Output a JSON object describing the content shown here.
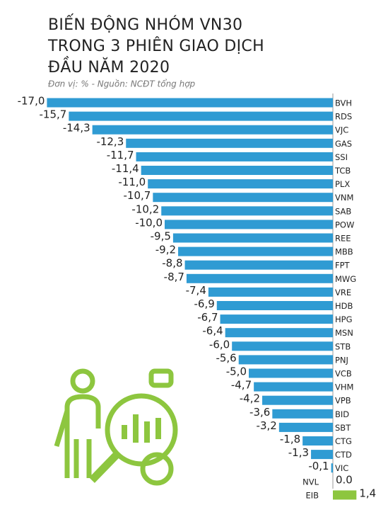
{
  "chart_data": {
    "type": "bar",
    "orientation": "horizontal",
    "title_lines": [
      "BIẾN ĐỘNG NHÓM VN30",
      "TRONG 3 PHIÊN GIAO DỊCH",
      "ĐẦU NĂM 2020"
    ],
    "subtitle": "Đơn vị: %    -   Nguồn: NCĐT tổng hợp",
    "categories": [
      "BVH",
      "RDS",
      "VJC",
      "GAS",
      "SSI",
      "TCB",
      "PLX",
      "VNM",
      "SAB",
      "POW",
      "REE",
      "MBB",
      "FPT",
      "MWG",
      "VRE",
      "HDB",
      "HPG",
      "MSN",
      "STB",
      "PNJ",
      "VCB",
      "VHM",
      "VPB",
      "BID",
      "SBT",
      "CTG",
      "CTD",
      "VIC",
      "NVL",
      "EIB"
    ],
    "values": [
      -17.0,
      -15.7,
      -14.3,
      -12.3,
      -11.7,
      -11.4,
      -11.0,
      -10.7,
      -10.2,
      -10.0,
      -9.5,
      -9.2,
      -8.8,
      -8.7,
      -7.4,
      -6.9,
      -6.7,
      -6.4,
      -6.0,
      -5.6,
      -5.0,
      -4.7,
      -4.2,
      -3.6,
      -3.2,
      -1.8,
      -1.3,
      -0.1,
      0.0,
      1.4
    ],
    "value_labels": [
      "-17,0",
      "-15,7",
      "-14,3",
      "-12,3",
      "-11,7",
      "-11,4",
      "-11,0",
      "-10,7",
      "-10,2",
      "-10,0",
      "-9,5",
      "-9,2",
      "-8,8",
      "-8,7",
      "-7,4",
      "-6,9",
      "-6,7",
      "-6,4",
      "-6,0",
      "-5,6",
      "-5,0",
      "-4,7",
      "-4,2",
      "-3,6",
      "-3,2",
      "-1,8",
      "-1,3",
      "-0,1",
      "0.0",
      "1,4"
    ],
    "color": "#2f9bd3",
    "positive_color": "#8dc63f"
  }
}
